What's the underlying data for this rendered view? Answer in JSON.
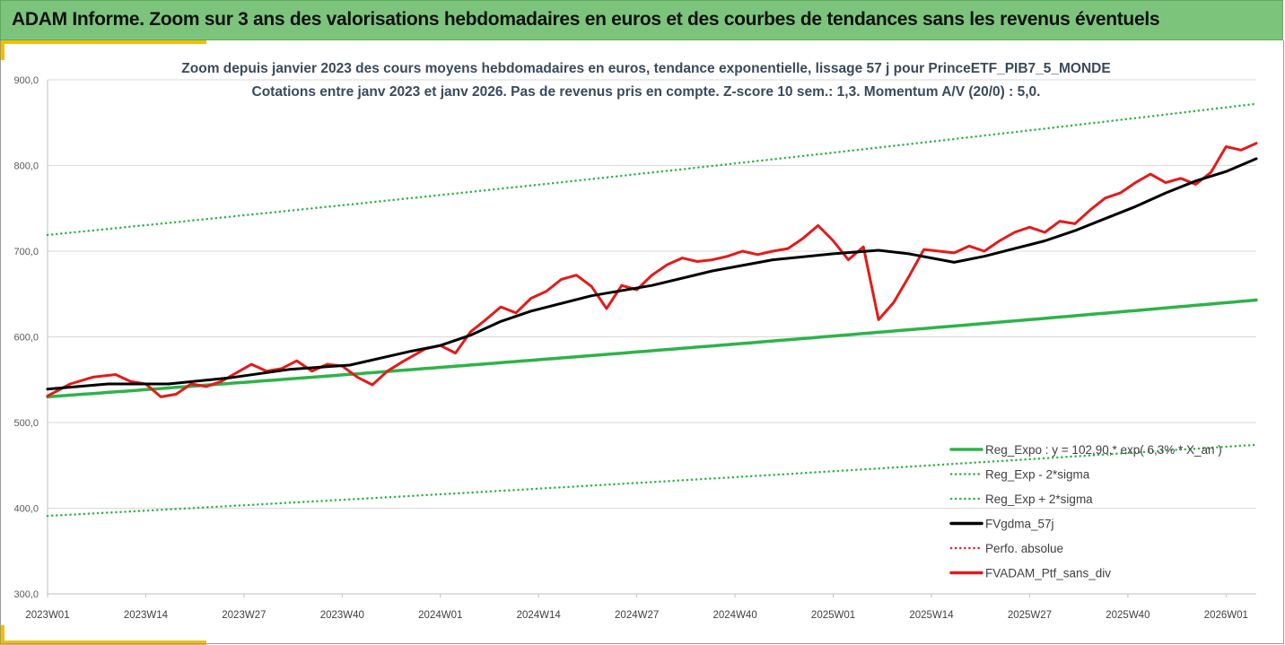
{
  "header": {
    "title": "ADAM Informe. Zoom sur 3 ans des valorisations hebdomadaires en euros et des courbes de tendances sans les revenus éventuels"
  },
  "colors": {
    "header_bg": "#7cc47c",
    "accent": "#f0c000",
    "reg_expo": "#2db34a",
    "sigma": "#2db34a",
    "fvgdma": "#000000",
    "perfo": "#e02020",
    "fvadam": "#e41a1a"
  },
  "chart_data": {
    "type": "line",
    "title": "Zoom depuis janvier 2023 des cours moyens hebdomadaires  en euros, tendance exponentielle, lissage 57 j pour PrinceETF_PIB7_5_MONDE",
    "subtitle": "Cotations entre janv 2023 et janv 2026. Pas de revenus pris en compte. Z-score 10 sem.: 1,3. Momentum  A/V (20/0) : 5,0.",
    "xlabel": "",
    "ylabel": "",
    "ylim": [
      300,
      900
    ],
    "y_ticks": [
      "300,0",
      "400,0",
      "500,0",
      "600,0",
      "700,0",
      "800,0",
      "900,0"
    ],
    "x_ticks": [
      "2023W01",
      "2023W14",
      "2023W27",
      "2023W40",
      "2024W01",
      "2024W14",
      "2024W27",
      "2024W40",
      "2025W01",
      "2025W14",
      "2025W27",
      "2025W40",
      "2026W01"
    ],
    "x_weeks": 161,
    "grid": "horizontal",
    "legend_position": "bottom-right",
    "series": [
      {
        "name": "Reg_Expo : y = 102,90,* exp( 6,3% *  X_an )",
        "style": "solid",
        "color": "#2db34a",
        "x": [
          0,
          160
        ],
        "values": [
          530,
          643
        ],
        "curve": "exponential"
      },
      {
        "name": "Reg_Exp - 2*sigma",
        "style": "dotted",
        "color": "#2db34a",
        "x": [
          0,
          160
        ],
        "values": [
          391,
          474
        ],
        "curve": "exponential"
      },
      {
        "name": "Reg_Exp + 2*sigma",
        "style": "dotted",
        "color": "#2db34a",
        "x": [
          0,
          160
        ],
        "values": [
          719,
          872
        ],
        "curve": "exponential"
      },
      {
        "name": "FVgdma_57j",
        "style": "solid",
        "color": "#000000",
        "x": [
          0,
          8,
          16,
          24,
          32,
          40,
          48,
          52,
          56,
          60,
          64,
          72,
          80,
          88,
          96,
          104,
          110,
          114,
          120,
          124,
          128,
          132,
          136,
          140,
          144,
          148,
          152,
          156,
          160
        ],
        "values": [
          539,
          545,
          545,
          552,
          562,
          567,
          583,
          590,
          602,
          618,
          630,
          648,
          660,
          677,
          690,
          697,
          701,
          697,
          687,
          694,
          703,
          712,
          724,
          738,
          752,
          768,
          782,
          793,
          808
        ]
      },
      {
        "name": "Perfo. absolue",
        "style": "dotted",
        "color": "#e02020",
        "x": [],
        "values": []
      },
      {
        "name": "FVADAM_Ptf_sans_div",
        "style": "solid",
        "color": "#e41a1a",
        "x": [
          0,
          3,
          6,
          9,
          11,
          13,
          15,
          17,
          19,
          21,
          23,
          25,
          27,
          29,
          31,
          33,
          35,
          37,
          39,
          41,
          43,
          45,
          47,
          50,
          52,
          54,
          56,
          58,
          60,
          62,
          64,
          66,
          68,
          70,
          72,
          74,
          76,
          78,
          80,
          82,
          84,
          86,
          88,
          90,
          92,
          94,
          96,
          98,
          100,
          102,
          104,
          106,
          108,
          110,
          112,
          114,
          116,
          118,
          120,
          122,
          124,
          126,
          128,
          130,
          132,
          134,
          136,
          138,
          140,
          142,
          144,
          146,
          148,
          150,
          152,
          154,
          156,
          158,
          160
        ],
        "values": [
          531,
          545,
          553,
          556,
          548,
          545,
          530,
          533,
          545,
          542,
          548,
          558,
          568,
          560,
          563,
          572,
          560,
          568,
          566,
          553,
          544,
          560,
          571,
          586,
          590,
          581,
          606,
          620,
          635,
          628,
          645,
          653,
          667,
          672,
          659,
          633,
          660,
          655,
          672,
          684,
          692,
          688,
          690,
          694,
          700,
          696,
          700,
          703,
          715,
          730,
          712,
          690,
          705,
          620,
          640,
          670,
          702,
          700,
          698,
          706,
          700,
          712,
          722,
          728,
          722,
          735,
          732,
          748,
          762,
          768,
          780,
          790,
          780,
          785,
          778,
          792,
          822,
          818,
          826
        ]
      }
    ]
  }
}
